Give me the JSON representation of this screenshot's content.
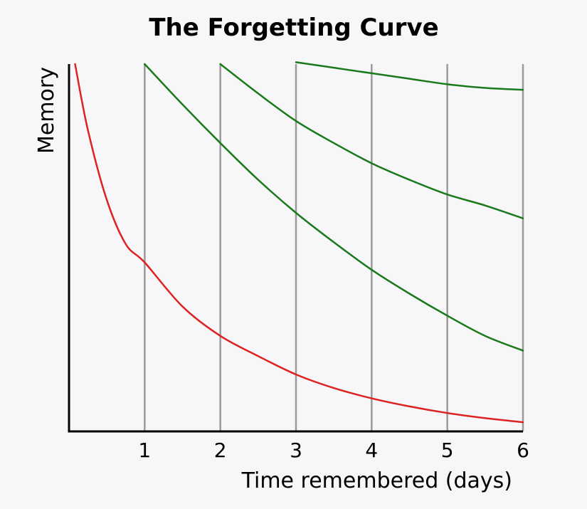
{
  "chart_data": {
    "type": "line",
    "title": "The Forgetting Curve",
    "xlabel": "Time remembered (days)",
    "ylabel": "Memory",
    "xlim": [
      0,
      6
    ],
    "ylim": [
      0,
      100
    ],
    "x_ticks": [
      "1",
      "2",
      "3",
      "4",
      "5",
      "6"
    ],
    "grid": "vertical lines at each day",
    "legend": "none",
    "colors": {
      "forgetting": "#dd2222",
      "review": "#1a7a1a",
      "grid": "#9a9a9a",
      "axis": "#000000",
      "background": "#f7f7f9"
    },
    "series": [
      {
        "color_role": "forgetting",
        "points": [
          [
            0.08,
            100
          ],
          [
            0.25,
            82
          ],
          [
            0.5,
            63
          ],
          [
            0.75,
            51
          ],
          [
            1,
            46
          ],
          [
            1.5,
            34
          ],
          [
            2,
            26
          ],
          [
            2.5,
            20.5
          ],
          [
            3,
            15.5
          ],
          [
            3.5,
            11.8
          ],
          [
            4,
            9
          ],
          [
            4.5,
            6.8
          ],
          [
            5,
            5
          ],
          [
            5.5,
            3.6
          ],
          [
            6,
            2.5
          ]
        ]
      },
      {
        "color_role": "review",
        "points": [
          [
            1,
            100
          ],
          [
            1.5,
            89
          ],
          [
            2,
            78.5
          ],
          [
            2.5,
            68.5
          ],
          [
            3,
            59.5
          ],
          [
            3.5,
            51.5
          ],
          [
            4,
            44
          ],
          [
            4.5,
            37.5
          ],
          [
            5,
            31.5
          ],
          [
            5.5,
            26
          ],
          [
            6,
            22
          ]
        ]
      },
      {
        "color_role": "review",
        "points": [
          [
            2,
            100
          ],
          [
            2.5,
            92
          ],
          [
            3,
            84.5
          ],
          [
            3.5,
            78.5
          ],
          [
            4,
            73
          ],
          [
            4.5,
            68.5
          ],
          [
            5,
            64.5
          ],
          [
            5.5,
            61.5
          ],
          [
            6,
            58
          ]
        ]
      },
      {
        "color_role": "review",
        "points": [
          [
            3,
            100.5
          ],
          [
            3.5,
            99
          ],
          [
            4,
            97.5
          ],
          [
            4.5,
            96
          ],
          [
            5,
            94.5
          ],
          [
            5.5,
            93.5
          ],
          [
            6,
            93
          ]
        ]
      }
    ]
  }
}
